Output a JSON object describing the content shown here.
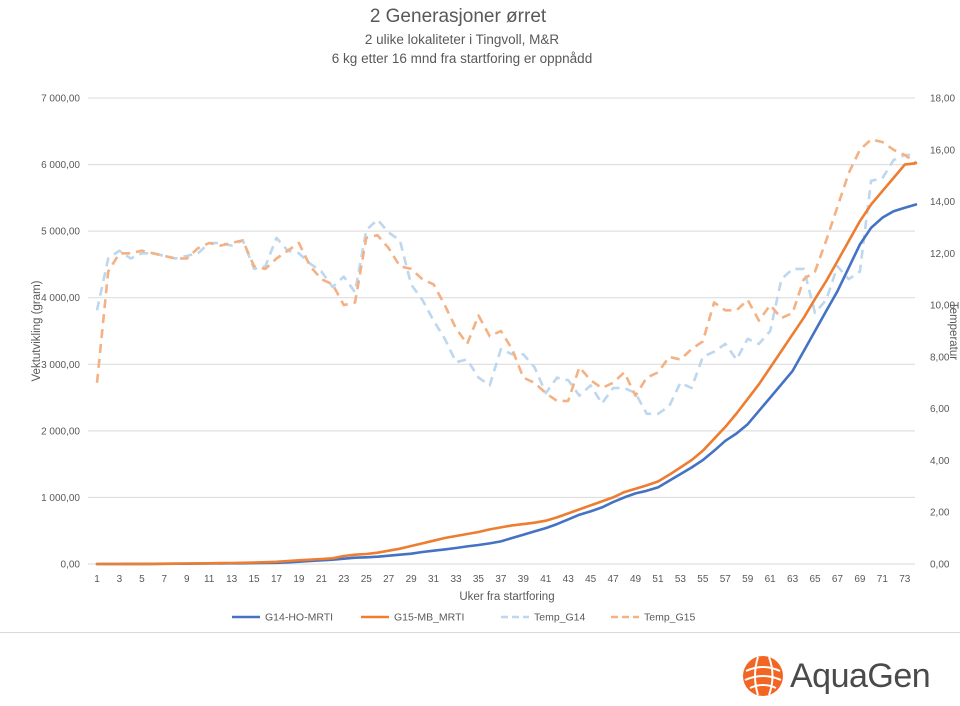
{
  "chart_data": {
    "type": "line",
    "title": "2 Generasjoner ørret",
    "subtitle": [
      "2 ulike lokaliteter i Tingvoll, M&R",
      "6 kg etter 16 mnd fra startforing er oppnådd"
    ],
    "xlabel": "Uker fra startforing",
    "ylabel": "Vektutvikling (gram)",
    "y2label": "Temperatur",
    "x": [
      1,
      2,
      3,
      4,
      5,
      6,
      7,
      8,
      9,
      10,
      11,
      12,
      13,
      14,
      15,
      16,
      17,
      18,
      19,
      20,
      21,
      22,
      23,
      24,
      25,
      26,
      27,
      28,
      29,
      30,
      31,
      32,
      33,
      34,
      35,
      36,
      37,
      38,
      39,
      40,
      41,
      42,
      43,
      44,
      45,
      46,
      47,
      48,
      49,
      50,
      51,
      52,
      53,
      54,
      55,
      56,
      57,
      58,
      59,
      60,
      61,
      62,
      63,
      64,
      65,
      66,
      67,
      68,
      69,
      70,
      71,
      72,
      73,
      74
    ],
    "x_tick_labels": [
      "1",
      "3",
      "5",
      "7",
      "9",
      "11",
      "13",
      "15",
      "17",
      "19",
      "21",
      "23",
      "25",
      "27",
      "29",
      "31",
      "33",
      "35",
      "37",
      "39",
      "41",
      "43",
      "45",
      "47",
      "49",
      "51",
      "53",
      "55",
      "57",
      "59",
      "61",
      "63",
      "65",
      "67",
      "69",
      "71",
      "73"
    ],
    "ylim": [
      0,
      7000
    ],
    "y_ticks": [
      "0,00",
      "1 000,00",
      "2 000,00",
      "3 000,00",
      "4 000,00",
      "5 000,00",
      "6 000,00",
      "7 000,00"
    ],
    "y2lim": [
      0,
      18
    ],
    "y2_ticks": [
      "0,00",
      "2,00",
      "4,00",
      "6,00",
      "8,00",
      "10,00",
      "12,00",
      "14,00",
      "16,00",
      "18,00"
    ],
    "grid": true,
    "legend_position": "bottom",
    "series": [
      {
        "name": "G14-HO-MRTI",
        "axis": "left",
        "style": "solid",
        "color": "#4472c4",
        "values": [
          0,
          0,
          0,
          1,
          1,
          2,
          3,
          4,
          5,
          6,
          7,
          8,
          10,
          11,
          13,
          15,
          18,
          25,
          35,
          45,
          55,
          65,
          80,
          95,
          100,
          110,
          125,
          140,
          155,
          180,
          200,
          220,
          240,
          265,
          285,
          310,
          340,
          390,
          440,
          490,
          540,
          600,
          670,
          740,
          790,
          850,
          930,
          1000,
          1060,
          1100,
          1150,
          1250,
          1350,
          1450,
          1560,
          1700,
          1850,
          1960,
          2100,
          2300,
          2500,
          2700,
          2900,
          3200,
          3500,
          3800,
          4100,
          4450,
          4800,
          5050,
          5200,
          5300,
          5350,
          5400
        ]
      },
      {
        "name": "G15-MB_MRTI",
        "axis": "left",
        "style": "solid",
        "color": "#ed7d31",
        "values": [
          0,
          0,
          0,
          1,
          2,
          3,
          4,
          5,
          7,
          9,
          11,
          13,
          15,
          18,
          22,
          27,
          33,
          45,
          55,
          65,
          75,
          85,
          120,
          140,
          150,
          170,
          200,
          230,
          270,
          310,
          350,
          390,
          420,
          450,
          480,
          520,
          550,
          580,
          600,
          620,
          650,
          700,
          760,
          820,
          880,
          940,
          1000,
          1080,
          1130,
          1180,
          1240,
          1340,
          1450,
          1560,
          1700,
          1880,
          2060,
          2260,
          2480,
          2700,
          2950,
          3200,
          3450,
          3700,
          3980,
          4250,
          4550,
          4850,
          5150,
          5400,
          5600,
          5800,
          6000,
          6020
        ]
      },
      {
        "name": "Temp_G14",
        "axis": "right",
        "style": "dashed",
        "color": "#bdd7ee",
        "values": [
          9.8,
          11.8,
          12.1,
          11.8,
          12.0,
          12.0,
          11.9,
          11.8,
          11.9,
          12.0,
          12.4,
          12.4,
          12.3,
          12.5,
          11.4,
          11.5,
          12.6,
          12.1,
          12.0,
          11.6,
          11.3,
          10.7,
          11.1,
          10.5,
          12.9,
          13.3,
          12.8,
          12.5,
          10.8,
          10.2,
          9.4,
          8.7,
          7.8,
          7.9,
          7.2,
          6.9,
          8.3,
          8.1,
          8.1,
          7.6,
          6.6,
          7.2,
          7.1,
          6.5,
          6.9,
          6.2,
          6.8,
          6.8,
          6.6,
          5.8,
          5.8,
          6.1,
          7.0,
          6.8,
          8.0,
          8.2,
          8.5,
          7.9,
          8.7,
          8.5,
          9.0,
          11.0,
          11.4,
          11.4,
          9.7,
          10.2,
          11.5,
          11.0,
          11.3,
          14.8,
          14.9,
          15.6,
          15.8,
          15.8
        ]
      },
      {
        "name": "Temp_G15",
        "axis": "right",
        "style": "dashed",
        "color": "#f4b183",
        "values": [
          7.0,
          11.3,
          12.0,
          12.0,
          12.1,
          12.0,
          11.9,
          11.8,
          11.8,
          12.2,
          12.4,
          12.3,
          12.4,
          12.5,
          11.5,
          11.4,
          11.8,
          12.1,
          12.4,
          11.5,
          11.0,
          10.8,
          10.0,
          10.1,
          12.6,
          12.7,
          12.2,
          11.5,
          11.4,
          11.0,
          10.8,
          10.0,
          9.1,
          8.5,
          9.6,
          8.8,
          9.0,
          8.3,
          7.2,
          7.0,
          6.6,
          6.3,
          6.3,
          7.6,
          7.1,
          6.8,
          7.0,
          7.4,
          6.5,
          7.2,
          7.4,
          8.0,
          7.9,
          8.3,
          8.6,
          10.1,
          9.8,
          9.8,
          10.2,
          9.4,
          10.0,
          9.5,
          9.7,
          11.0,
          11.3,
          12.5,
          13.8,
          15.1,
          16.0,
          16.4,
          16.3,
          16.0,
          15.8,
          15.5
        ]
      }
    ]
  },
  "brand": {
    "logo_text": "AquaGen",
    "logo_color": "#f26522"
  }
}
